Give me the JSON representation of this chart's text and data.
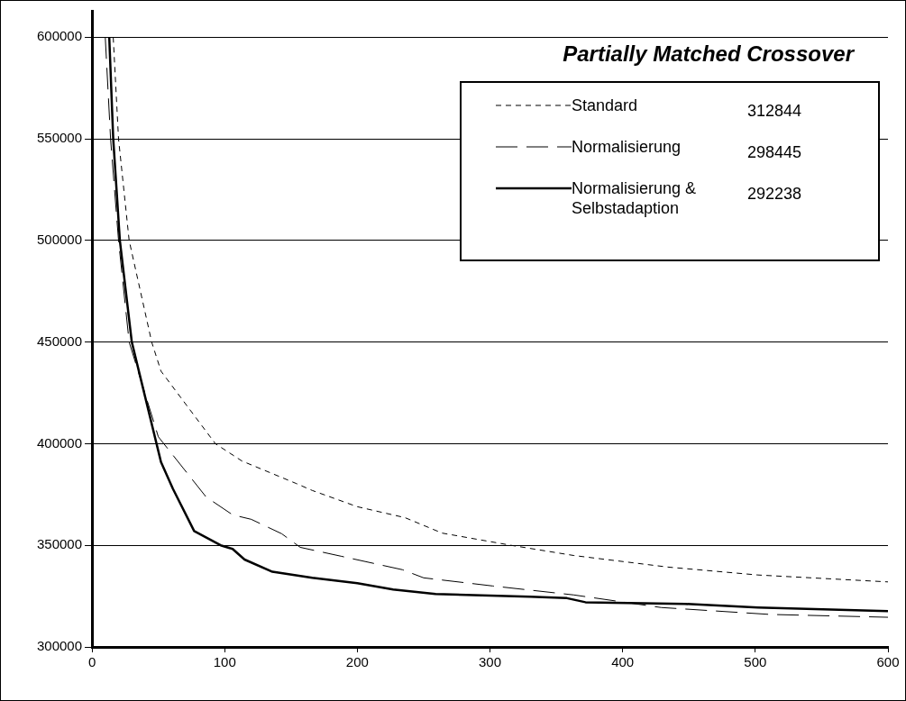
{
  "chart_data": {
    "type": "line",
    "title": "Partially Matched Crossover",
    "xlim": [
      0,
      600
    ],
    "xticks": [
      0,
      100,
      200,
      300,
      400,
      500,
      600
    ],
    "ylim": [
      300000,
      613000
    ],
    "yticks": [
      300000,
      350000,
      400000,
      450000,
      500000,
      550000,
      600000
    ],
    "grid": "y",
    "legend": "top right",
    "marker": "none",
    "annotations": [
      "312844",
      "298445",
      "292238"
    ],
    "series": [
      {
        "name": "Standard",
        "color": "#000000",
        "line_style": "dotted",
        "x": [
          16,
          20,
          28,
          45,
          52,
          93,
          113,
          154,
          166,
          200,
          236,
          264,
          316,
          363,
          434,
          502,
          600
        ],
        "values": [
          600000,
          550000,
          500000,
          450000,
          435700,
          400000,
          391500,
          380400,
          377000,
          369000,
          363600,
          356000,
          350000,
          345000,
          339300,
          335400,
          332000
        ]
      },
      {
        "name": "Normalisierung",
        "color": "#000000",
        "line_style": "dashed",
        "x": [
          10,
          14,
          20,
          28,
          50,
          86,
          106,
          120,
          143,
          157,
          188,
          234,
          250,
          302,
          363,
          429,
          511,
          600
        ],
        "values": [
          600000,
          550000,
          500000,
          450000,
          403400,
          373800,
          365000,
          362800,
          355700,
          349000,
          344600,
          338000,
          334000,
          330000,
          325600,
          319400,
          316000,
          314600
        ]
      },
      {
        "name": "Normalisierung & Selbstadaption",
        "color": "#000000",
        "line_style": "solid",
        "x": [
          13,
          16,
          21,
          30,
          52,
          61,
          77,
          97,
          106,
          115,
          136,
          166,
          200,
          227,
          259,
          330,
          358,
          372,
          447,
          502,
          600
        ],
        "values": [
          600000,
          550000,
          500000,
          450000,
          391000,
          377800,
          357000,
          350000,
          348200,
          343000,
          337000,
          334000,
          331400,
          328300,
          326000,
          324700,
          324000,
          322000,
          321200,
          319400,
          317600
        ]
      }
    ]
  }
}
